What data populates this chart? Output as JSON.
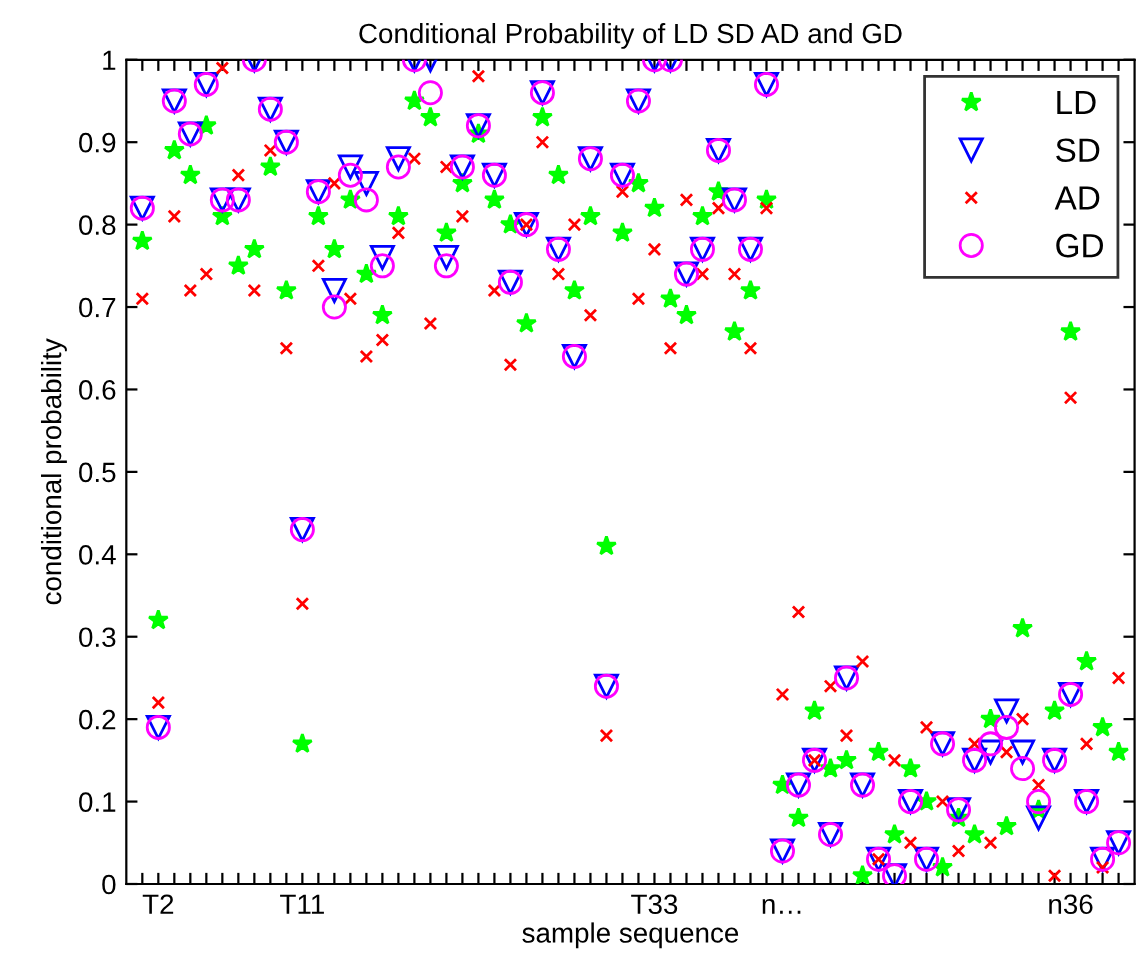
{
  "chart_data": {
    "type": "scatter",
    "title": "Conditional Probability of LD SD AD and GD",
    "xlabel": "sample sequence",
    "ylabel": "conditional probability",
    "categories": [
      null,
      "T2",
      null,
      null,
      null,
      null,
      null,
      null,
      null,
      null,
      "T11",
      null,
      null,
      null,
      null,
      null,
      null,
      null,
      null,
      null,
      null,
      null,
      null,
      null,
      null,
      null,
      null,
      null,
      null,
      null,
      null,
      null,
      "T33",
      null,
      null,
      null,
      null,
      null,
      null,
      null,
      "n…",
      null,
      null,
      null,
      null,
      null,
      null,
      null,
      null,
      null,
      null,
      null,
      null,
      null,
      null,
      null,
      null,
      null,
      "n36",
      null,
      null,
      null
    ],
    "series": [
      {
        "name": "LD",
        "color": "#00ff00",
        "marker": "star",
        "values": [
          0.78,
          0.32,
          0.89,
          0.86,
          0.92,
          0.81,
          0.75,
          0.77,
          0.87,
          0.72,
          0.17,
          0.81,
          0.77,
          0.83,
          0.74,
          0.69,
          0.81,
          0.95,
          0.93,
          0.79,
          0.85,
          0.91,
          0.83,
          0.8,
          0.68,
          0.93,
          0.86,
          0.72,
          0.81,
          0.41,
          0.79,
          0.85,
          0.82,
          0.71,
          0.69,
          0.81,
          0.84,
          0.67,
          0.72,
          0.83,
          0.12,
          0.08,
          0.21,
          0.14,
          0.15,
          0.01,
          0.16,
          0.06,
          0.14,
          0.1,
          0.02,
          0.08,
          0.06,
          0.2,
          0.07,
          0.31,
          0.09,
          0.21,
          0.67,
          0.27,
          0.19,
          0.16
        ]
      },
      {
        "name": "SD",
        "color": "#0000ff",
        "marker": "triangle",
        "values": [
          0.82,
          0.19,
          0.95,
          0.91,
          0.97,
          0.83,
          0.83,
          1.0,
          0.94,
          0.9,
          0.43,
          0.84,
          0.72,
          0.87,
          0.85,
          0.76,
          0.88,
          1.0,
          1.0,
          0.76,
          0.87,
          0.92,
          0.86,
          0.73,
          0.8,
          0.96,
          0.77,
          0.64,
          0.88,
          0.24,
          0.86,
          0.95,
          1.0,
          1.0,
          0.74,
          0.77,
          0.89,
          0.83,
          0.77,
          0.97,
          0.04,
          0.12,
          0.15,
          0.06,
          0.25,
          0.12,
          0.03,
          0.01,
          0.1,
          0.03,
          0.17,
          0.09,
          0.15,
          0.16,
          0.21,
          0.16,
          0.08,
          0.15,
          0.23,
          0.1,
          0.03,
          0.05
        ]
      },
      {
        "name": "AD",
        "color": "#ff0000",
        "marker": "cross",
        "values": [
          0.71,
          0.22,
          0.81,
          0.72,
          0.74,
          0.99,
          0.86,
          0.72,
          0.89,
          0.65,
          0.34,
          0.75,
          0.85,
          0.71,
          0.64,
          0.66,
          0.79,
          0.88,
          0.68,
          0.87,
          0.81,
          0.98,
          0.72,
          0.63,
          0.8,
          0.9,
          0.74,
          0.8,
          0.69,
          0.18,
          0.84,
          0.71,
          0.77,
          0.65,
          0.83,
          0.74,
          0.82,
          0.74,
          0.65,
          0.82,
          0.23,
          0.33,
          0.15,
          0.24,
          0.18,
          0.27,
          0.03,
          0.15,
          0.05,
          0.19,
          0.1,
          0.04,
          0.17,
          0.05,
          0.16,
          0.2,
          0.12,
          0.01,
          0.59,
          0.17,
          0.02,
          0.25
        ]
      },
      {
        "name": "GD",
        "color": "#ff00ff",
        "marker": "circle",
        "values": [
          0.82,
          0.19,
          0.95,
          0.91,
          0.97,
          0.83,
          0.83,
          1.0,
          0.94,
          0.9,
          0.43,
          0.84,
          0.7,
          0.86,
          0.83,
          0.75,
          0.87,
          1.0,
          0.96,
          0.75,
          0.87,
          0.92,
          0.86,
          0.73,
          0.8,
          0.96,
          0.77,
          0.64,
          0.88,
          0.24,
          0.86,
          0.95,
          1.0,
          1.0,
          0.74,
          0.77,
          0.89,
          0.83,
          0.77,
          0.97,
          0.04,
          0.12,
          0.15,
          0.06,
          0.25,
          0.12,
          0.03,
          0.01,
          0.1,
          0.03,
          0.17,
          0.09,
          0.15,
          0.17,
          0.19,
          0.14,
          0.1,
          0.15,
          0.23,
          0.1,
          0.03,
          0.05
        ]
      }
    ],
    "ylim": [
      0,
      1
    ],
    "yticks": [
      0,
      0.1,
      0.2,
      0.3,
      0.4,
      0.5,
      0.6,
      0.7,
      0.8,
      0.9,
      1
    ],
    "grid": false,
    "legend": "top right"
  }
}
